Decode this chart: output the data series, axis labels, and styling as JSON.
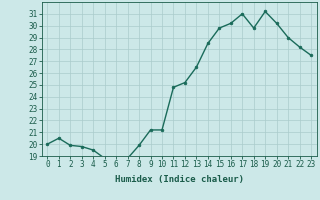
{
  "xlabel": "Humidex (Indice chaleur)",
  "x": [
    0,
    1,
    2,
    3,
    4,
    5,
    6,
    7,
    8,
    9,
    10,
    11,
    12,
    13,
    14,
    15,
    16,
    17,
    18,
    19,
    20,
    21,
    22,
    23
  ],
  "y": [
    20.0,
    20.5,
    19.9,
    19.8,
    19.5,
    18.8,
    18.7,
    18.8,
    19.9,
    21.2,
    21.2,
    24.8,
    25.2,
    26.5,
    28.5,
    29.8,
    30.2,
    31.0,
    29.8,
    31.2,
    30.2,
    29.0,
    28.2,
    27.5
  ],
  "ylim": [
    19,
    32
  ],
  "yticks": [
    19,
    20,
    21,
    22,
    23,
    24,
    25,
    26,
    27,
    28,
    29,
    30,
    31
  ],
  "xticks": [
    0,
    1,
    2,
    3,
    4,
    5,
    6,
    7,
    8,
    9,
    10,
    11,
    12,
    13,
    14,
    15,
    16,
    17,
    18,
    19,
    20,
    21,
    22,
    23
  ],
  "line_color": "#1a6b5a",
  "marker": "o",
  "marker_size": 2.0,
  "bg_color": "#cce8e8",
  "grid_color": "#aacccc",
  "text_color": "#1a5c4a",
  "font_family": "monospace",
  "label_fontsize": 6.5,
  "tick_fontsize": 5.5,
  "linewidth": 1.0
}
